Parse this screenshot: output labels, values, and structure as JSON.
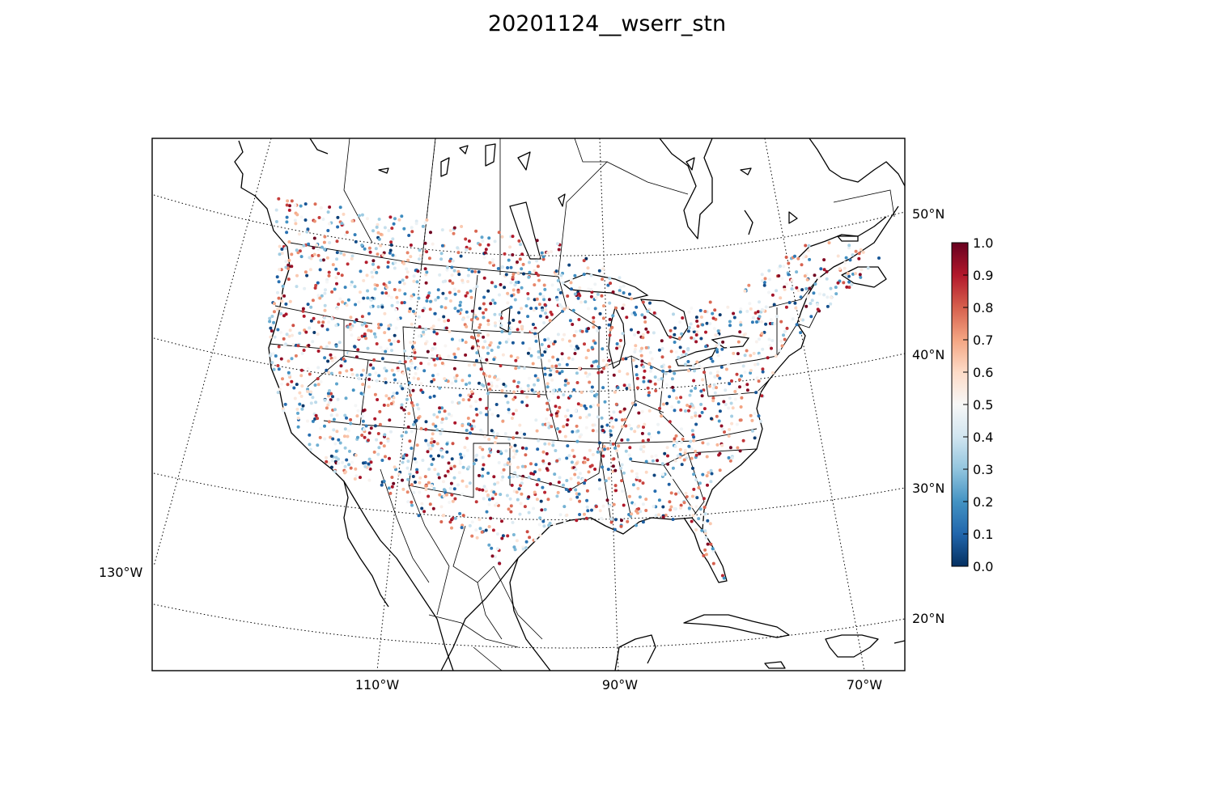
{
  "title": "20201124__wserr_stn",
  "map": {
    "projection": "lambert-conformal",
    "region": "Continental US",
    "lon_labels": [
      "130°W",
      "110°W",
      "90°W",
      "70°W"
    ],
    "lat_labels": [
      "50°N",
      "40°N",
      "30°N",
      "20°N"
    ],
    "graticule_style": "dotted"
  },
  "colorbar": {
    "colormap": "RdBu_r",
    "min": 0.0,
    "max": 1.0,
    "ticks": [
      "0.0",
      "0.1",
      "0.2",
      "0.3",
      "0.4",
      "0.5",
      "0.6",
      "0.7",
      "0.8",
      "0.9",
      "1.0"
    ],
    "colors": [
      "#053061",
      "#2166ac",
      "#4393c3",
      "#92c5de",
      "#d1e5f0",
      "#f7f7f7",
      "#fddbc7",
      "#f4a582",
      "#d6604d",
      "#b2182b",
      "#67001f"
    ]
  }
}
